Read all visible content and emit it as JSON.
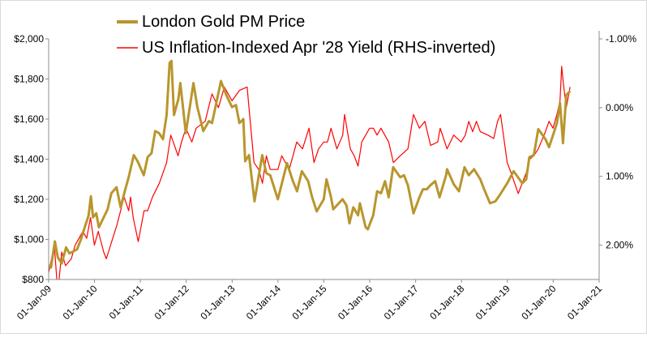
{
  "chart_data": {
    "type": "line",
    "title": "",
    "legend": {
      "placement": "top-center",
      "entries": [
        {
          "label": "London Gold PM Price",
          "color": "#b8962e"
        },
        {
          "label": "US Inflation-Indexed Apr '28 Yield (RHS-inverted)",
          "color": "#ff0000"
        }
      ]
    },
    "x_axis": {
      "range": [
        "2009-01-01",
        "2021-01-01"
      ],
      "ticks": [
        {
          "date": "2009-01-01",
          "label": "01-Jan-09"
        },
        {
          "date": "2010-01-01",
          "label": "01-Jan-10"
        },
        {
          "date": "2011-01-01",
          "label": "01-Jan-11"
        },
        {
          "date": "2012-01-01",
          "label": "01-Jan-12"
        },
        {
          "date": "2013-01-01",
          "label": "01-Jan-13"
        },
        {
          "date": "2014-01-01",
          "label": "01-Jan-14"
        },
        {
          "date": "2015-01-01",
          "label": "01-Jan-15"
        },
        {
          "date": "2016-01-01",
          "label": "01-Jan-16"
        },
        {
          "date": "2017-01-01",
          "label": "01-Jan-17"
        },
        {
          "date": "2018-01-01",
          "label": "01-Jan-18"
        },
        {
          "date": "2019-01-01",
          "label": "01-Jan-19"
        },
        {
          "date": "2020-01-01",
          "label": "01-Jan-20"
        },
        {
          "date": "2021-01-01",
          "label": "01-Jan-21"
        }
      ]
    },
    "y_axis_left": {
      "range": [
        800,
        2000
      ],
      "ticks": [
        {
          "value": 800,
          "label": "$800"
        },
        {
          "value": 1000,
          "label": "$1,000"
        },
        {
          "value": 1200,
          "label": "$1,200"
        },
        {
          "value": 1400,
          "label": "$1,400"
        },
        {
          "value": 1600,
          "label": "$1,600"
        },
        {
          "value": 1800,
          "label": "$1,800"
        },
        {
          "value": 2000,
          "label": "$2,000"
        }
      ]
    },
    "y_axis_right": {
      "inverted": true,
      "range": [
        -1.0,
        2.5
      ],
      "ticks": [
        {
          "value": -1.0,
          "label": "-1.00%"
        },
        {
          "value": 0.0,
          "label": "0.00%"
        },
        {
          "value": 1.0,
          "label": "1.00%"
        },
        {
          "value": 2.0,
          "label": "2.00%"
        }
      ]
    },
    "grid": false,
    "series": [
      {
        "axis": "left",
        "color": "#b8962e",
        "points": [
          [
            "2009-01-01",
            870
          ],
          [
            "2009-01-20",
            860
          ],
          [
            "2009-02-10",
            950
          ],
          [
            "2009-02-20",
            990
          ],
          [
            "2009-03-15",
            910
          ],
          [
            "2009-04-15",
            880
          ],
          [
            "2009-05-20",
            960
          ],
          [
            "2009-06-15",
            930
          ],
          [
            "2009-07-15",
            940
          ],
          [
            "2009-08-15",
            950
          ],
          [
            "2009-09-15",
            1000
          ],
          [
            "2009-10-15",
            1060
          ],
          [
            "2009-11-15",
            1120
          ],
          [
            "2009-12-03",
            1215
          ],
          [
            "2009-12-20",
            1110
          ],
          [
            "2010-01-15",
            1130
          ],
          [
            "2010-02-05",
            1060
          ],
          [
            "2010-03-15",
            1110
          ],
          [
            "2010-04-15",
            1150
          ],
          [
            "2010-05-15",
            1230
          ],
          [
            "2010-06-25",
            1260
          ],
          [
            "2010-07-28",
            1160
          ],
          [
            "2010-08-30",
            1240
          ],
          [
            "2010-09-30",
            1310
          ],
          [
            "2010-11-10",
            1420
          ],
          [
            "2010-12-10",
            1390
          ],
          [
            "2011-01-28",
            1320
          ],
          [
            "2011-02-28",
            1410
          ],
          [
            "2011-03-31",
            1430
          ],
          [
            "2011-04-29",
            1540
          ],
          [
            "2011-05-30",
            1530
          ],
          [
            "2011-06-30",
            1500
          ],
          [
            "2011-07-29",
            1620
          ],
          [
            "2011-08-22",
            1880
          ],
          [
            "2011-09-06",
            1890
          ],
          [
            "2011-09-26",
            1620
          ],
          [
            "2011-10-31",
            1700
          ],
          [
            "2011-11-15",
            1780
          ],
          [
            "2011-12-29",
            1530
          ],
          [
            "2012-02-28",
            1780
          ],
          [
            "2012-03-30",
            1660
          ],
          [
            "2012-05-16",
            1540
          ],
          [
            "2012-06-30",
            1590
          ],
          [
            "2012-07-25",
            1580
          ],
          [
            "2012-08-31",
            1690
          ],
          [
            "2012-10-04",
            1790
          ],
          [
            "2012-11-15",
            1720
          ],
          [
            "2012-12-31",
            1660
          ],
          [
            "2013-01-31",
            1670
          ],
          [
            "2013-02-28",
            1580
          ],
          [
            "2013-03-31",
            1600
          ],
          [
            "2013-04-15",
            1390
          ],
          [
            "2013-05-15",
            1420
          ],
          [
            "2013-06-28",
            1190
          ],
          [
            "2013-08-28",
            1420
          ],
          [
            "2013-09-30",
            1330
          ],
          [
            "2013-10-31",
            1320
          ],
          [
            "2013-12-31",
            1200
          ],
          [
            "2014-03-14",
            1380
          ],
          [
            "2014-04-30",
            1290
          ],
          [
            "2014-06-02",
            1240
          ],
          [
            "2014-07-10",
            1340
          ],
          [
            "2014-08-29",
            1290
          ],
          [
            "2014-09-30",
            1210
          ],
          [
            "2014-11-05",
            1140
          ],
          [
            "2014-12-31",
            1200
          ],
          [
            "2015-01-22",
            1300
          ],
          [
            "2015-02-27",
            1210
          ],
          [
            "2015-03-17",
            1150
          ],
          [
            "2015-04-30",
            1180
          ],
          [
            "2015-05-30",
            1200
          ],
          [
            "2015-06-30",
            1170
          ],
          [
            "2015-07-24",
            1080
          ],
          [
            "2015-08-24",
            1160
          ],
          [
            "2015-09-30",
            1120
          ],
          [
            "2015-10-15",
            1180
          ],
          [
            "2015-11-30",
            1060
          ],
          [
            "2015-12-17",
            1050
          ],
          [
            "2016-01-29",
            1120
          ],
          [
            "2016-02-29",
            1240
          ],
          [
            "2016-03-31",
            1230
          ],
          [
            "2016-05-02",
            1290
          ],
          [
            "2016-05-31",
            1210
          ],
          [
            "2016-07-06",
            1360
          ],
          [
            "2016-08-31",
            1310
          ],
          [
            "2016-09-30",
            1320
          ],
          [
            "2016-10-31",
            1270
          ],
          [
            "2016-12-15",
            1130
          ],
          [
            "2017-01-31",
            1210
          ],
          [
            "2017-02-28",
            1250
          ],
          [
            "2017-03-31",
            1250
          ],
          [
            "2017-04-28",
            1270
          ],
          [
            "2017-06-06",
            1290
          ],
          [
            "2017-07-10",
            1210
          ],
          [
            "2017-08-31",
            1320
          ],
          [
            "2017-09-08",
            1350
          ],
          [
            "2017-10-31",
            1275
          ],
          [
            "2017-12-12",
            1240
          ],
          [
            "2018-01-25",
            1360
          ],
          [
            "2018-02-28",
            1320
          ],
          [
            "2018-04-11",
            1350
          ],
          [
            "2018-05-31",
            1300
          ],
          [
            "2018-06-30",
            1250
          ],
          [
            "2018-08-16",
            1180
          ],
          [
            "2018-09-28",
            1190
          ],
          [
            "2018-10-31",
            1220
          ],
          [
            "2018-12-31",
            1280
          ],
          [
            "2019-02-20",
            1340
          ],
          [
            "2019-04-30",
            1280
          ],
          [
            "2019-05-31",
            1300
          ],
          [
            "2019-06-25",
            1410
          ],
          [
            "2019-07-31",
            1420
          ],
          [
            "2019-09-04",
            1550
          ],
          [
            "2019-10-31",
            1500
          ],
          [
            "2019-11-29",
            1460
          ],
          [
            "2019-12-31",
            1520
          ],
          [
            "2020-01-31",
            1580
          ],
          [
            "2020-02-24",
            1680
          ],
          [
            "2020-03-19",
            1480
          ],
          [
            "2020-04-14",
            1720
          ],
          [
            "2020-05-15",
            1740
          ]
        ]
      },
      {
        "axis": "right",
        "color": "#ff0000",
        "points": [
          [
            "2009-01-01",
            2.4
          ],
          [
            "2009-02-15",
            2.0
          ],
          [
            "2009-03-15",
            2.7
          ],
          [
            "2009-04-15",
            2.1
          ],
          [
            "2009-05-15",
            2.3
          ],
          [
            "2009-06-30",
            2.2
          ],
          [
            "2009-07-31",
            2.0
          ],
          [
            "2009-08-31",
            1.9
          ],
          [
            "2009-09-30",
            1.8
          ],
          [
            "2009-10-31",
            1.9
          ],
          [
            "2009-11-30",
            1.6
          ],
          [
            "2009-12-31",
            2.0
          ],
          [
            "2010-01-31",
            1.8
          ],
          [
            "2010-03-15",
            2.1
          ],
          [
            "2010-04-05",
            2.2
          ],
          [
            "2010-06-30",
            1.7
          ],
          [
            "2010-08-25",
            1.3
          ],
          [
            "2010-09-30",
            1.5
          ],
          [
            "2010-10-15",
            1.3
          ],
          [
            "2010-11-05",
            1.6
          ],
          [
            "2010-12-15",
            1.95
          ],
          [
            "2011-01-31",
            1.5
          ],
          [
            "2011-02-28",
            1.5
          ],
          [
            "2011-04-08",
            1.3
          ],
          [
            "2011-06-01",
            1.1
          ],
          [
            "2011-07-29",
            0.8
          ],
          [
            "2011-08-31",
            0.4
          ],
          [
            "2011-09-20",
            0.5
          ],
          [
            "2011-10-28",
            0.7
          ],
          [
            "2011-11-25",
            0.5
          ],
          [
            "2011-12-30",
            0.3
          ],
          [
            "2012-02-15",
            0.5
          ],
          [
            "2012-03-20",
            0.3
          ],
          [
            "2012-05-31",
            0.2
          ],
          [
            "2012-07-25",
            -0.2
          ],
          [
            "2012-09-14",
            0.0
          ],
          [
            "2012-10-31",
            -0.3
          ],
          [
            "2012-12-31",
            -0.1
          ],
          [
            "2013-02-28",
            -0.25
          ],
          [
            "2013-04-30",
            -0.3
          ],
          [
            "2013-05-15",
            0.0
          ],
          [
            "2013-06-24",
            0.8
          ],
          [
            "2013-07-31",
            0.9
          ],
          [
            "2013-08-30",
            1.1
          ],
          [
            "2013-09-30",
            0.7
          ],
          [
            "2013-10-31",
            0.9
          ],
          [
            "2013-12-31",
            0.9
          ],
          [
            "2014-01-31",
            0.7
          ],
          [
            "2014-03-31",
            0.9
          ],
          [
            "2014-05-30",
            0.5
          ],
          [
            "2014-07-15",
            0.6
          ],
          [
            "2014-09-05",
            0.3
          ],
          [
            "2014-10-15",
            0.8
          ],
          [
            "2014-11-20",
            0.6
          ],
          [
            "2014-12-31",
            0.5
          ],
          [
            "2015-01-30",
            0.5
          ],
          [
            "2015-02-27",
            0.3
          ],
          [
            "2015-04-15",
            0.6
          ],
          [
            "2015-05-31",
            0.4
          ],
          [
            "2015-06-15",
            0.1
          ],
          [
            "2015-07-31",
            0.6
          ],
          [
            "2015-08-31",
            0.7
          ],
          [
            "2015-09-30",
            0.85
          ],
          [
            "2015-10-30",
            0.5
          ],
          [
            "2015-11-30",
            0.4
          ],
          [
            "2015-12-31",
            0.3
          ],
          [
            "2016-01-31",
            0.3
          ],
          [
            "2016-02-29",
            0.4
          ],
          [
            "2016-03-31",
            0.3
          ],
          [
            "2016-05-31",
            0.5
          ],
          [
            "2016-07-08",
            0.8
          ],
          [
            "2016-08-31",
            0.7
          ],
          [
            "2016-10-31",
            0.6
          ],
          [
            "2016-12-15",
            0.1
          ],
          [
            "2017-01-31",
            0.3
          ],
          [
            "2017-03-15",
            0.2
          ],
          [
            "2017-04-30",
            0.55
          ],
          [
            "2017-06-26",
            0.5
          ],
          [
            "2017-07-15",
            0.3
          ],
          [
            "2017-09-08",
            0.6
          ],
          [
            "2017-10-31",
            0.4
          ],
          [
            "2017-12-29",
            0.5
          ],
          [
            "2018-01-31",
            0.4
          ],
          [
            "2018-02-28",
            0.2
          ],
          [
            "2018-03-31",
            0.35
          ],
          [
            "2018-04-30",
            0.2
          ],
          [
            "2018-05-31",
            0.35
          ],
          [
            "2018-07-31",
            0.4
          ],
          [
            "2018-09-14",
            0.45
          ],
          [
            "2018-10-15",
            0.2
          ],
          [
            "2018-11-08",
            0.1
          ],
          [
            "2018-12-31",
            0.8
          ],
          [
            "2019-01-31",
            0.95
          ],
          [
            "2019-03-29",
            1.25
          ],
          [
            "2019-05-31",
            0.95
          ],
          [
            "2019-06-28",
            0.75
          ],
          [
            "2019-07-31",
            0.7
          ],
          [
            "2019-09-04",
            0.6
          ],
          [
            "2019-10-31",
            0.35
          ],
          [
            "2019-11-29",
            0.2
          ],
          [
            "2019-12-31",
            0.3
          ],
          [
            "2020-01-31",
            0.1
          ],
          [
            "2020-02-24",
            -0.1
          ],
          [
            "2020-03-09",
            -0.6
          ],
          [
            "2020-03-19",
            -0.4
          ],
          [
            "2020-04-14",
            0.0
          ],
          [
            "2020-05-15",
            -0.3
          ]
        ]
      }
    ]
  }
}
